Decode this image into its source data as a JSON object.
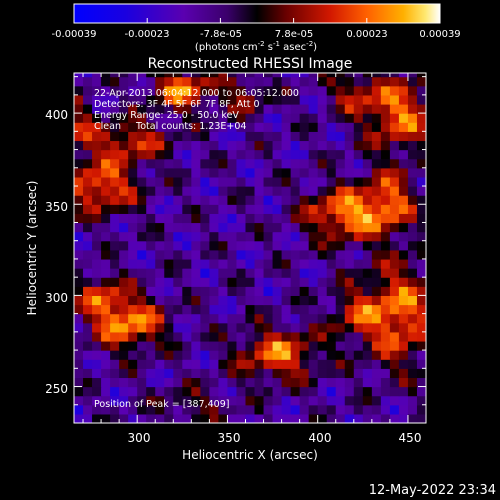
{
  "chart_data": {
    "type": "heatmap",
    "title": "Reconstructed RHESSI Image",
    "xlabel": "Heliocentric X (arcsec)",
    "ylabel": "Heliocentric Y (arcsec)",
    "xlim": [
      265,
      460
    ],
    "ylim": [
      230,
      422
    ],
    "x_ticks": [
      300,
      350,
      400,
      450
    ],
    "y_ticks": [
      250,
      300,
      350,
      400
    ],
    "colorbar": {
      "ticks": [
        "-0.00039",
        "-0.00023",
        "-7.8e-05",
        "7.8e-05",
        "0.00023",
        "0.00039"
      ],
      "unit_line": "(photons cm",
      "unit_exp1": "-2",
      "unit_mid": " s",
      "unit_exp2": "-1",
      "unit_end": " asec",
      "unit_exp3": "-2",
      "unit_close": ")",
      "range": [
        -0.00039,
        0.00039
      ]
    },
    "annotations": [
      "22-Apr-2013 06:04:12.000 to 06:05:12.000",
      "Detectors: 3F 4F 5F 6F 7F 8F, Att 0",
      "Energy Range: 25.0 - 50.0 keV",
      "Clean     Total counts: 1.23E+04"
    ],
    "peak_label": "Position of Peak = [387,409]",
    "hot_regions": [
      {
        "x": 325,
        "y": 413,
        "amp": 0.00036,
        "sx": 12,
        "sy": 8
      },
      {
        "x": 445,
        "y": 400,
        "amp": 0.00035,
        "sx": 14,
        "sy": 14
      },
      {
        "x": 420,
        "y": 412,
        "amp": 0.0002,
        "sx": 10,
        "sy": 8
      },
      {
        "x": 280,
        "y": 360,
        "amp": 0.00036,
        "sx": 14,
        "sy": 10
      },
      {
        "x": 295,
        "y": 385,
        "amp": 0.00028,
        "sx": 16,
        "sy": 8
      },
      {
        "x": 415,
        "y": 345,
        "amp": 0.00039,
        "sx": 15,
        "sy": 10
      },
      {
        "x": 440,
        "y": 352,
        "amp": 0.0003,
        "sx": 10,
        "sy": 12
      },
      {
        "x": 295,
        "y": 285,
        "amp": 0.00039,
        "sx": 14,
        "sy": 10
      },
      {
        "x": 280,
        "y": 300,
        "amp": 0.00025,
        "sx": 10,
        "sy": 8
      },
      {
        "x": 378,
        "y": 268,
        "amp": 0.00034,
        "sx": 16,
        "sy": 10
      },
      {
        "x": 445,
        "y": 290,
        "amp": 0.00036,
        "sx": 14,
        "sy": 20
      },
      {
        "x": 420,
        "y": 290,
        "amp": 0.0002,
        "sx": 10,
        "sy": 10
      },
      {
        "x": 330,
        "y": 240,
        "amp": 0.00014,
        "sx": 14,
        "sy": 7
      },
      {
        "x": 360,
        "y": 410,
        "amp": 0.00018,
        "sx": 10,
        "sy": 8
      },
      {
        "x": 268,
        "y": 395,
        "amp": 0.00018,
        "sx": 6,
        "sy": 12
      }
    ]
  },
  "timestamp": "12-May-2022 23:34"
}
